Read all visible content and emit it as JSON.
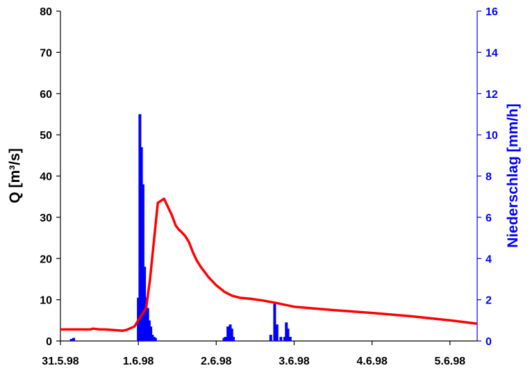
{
  "chart_data": {
    "type": "line+bar",
    "x_tick_labels": [
      "31.5.98",
      "1.6.98",
      "2.6.98",
      "3.6.98",
      "4.6.98",
      "5.6.98"
    ],
    "x_range_days": [
      0,
      5.35
    ],
    "y_left": {
      "label": "Q [m³/s]",
      "range": [
        0,
        80
      ],
      "ticks": [
        0,
        10,
        20,
        30,
        40,
        50,
        60,
        70,
        80
      ]
    },
    "y_right": {
      "label": "Niederschlag [mm/h]",
      "range": [
        0,
        16
      ],
      "ticks": [
        0,
        2,
        4,
        6,
        8,
        10,
        12,
        14,
        16
      ]
    },
    "series": [
      {
        "kind": "line",
        "axis": "left",
        "color": "#ff0000",
        "x": [
          0,
          0.2,
          0.38,
          0.42,
          0.5,
          0.57,
          0.65,
          0.8,
          0.85,
          0.95,
          1.0,
          1.05,
          1.1,
          1.15,
          1.25,
          1.33,
          1.38,
          1.43,
          1.48,
          1.52,
          1.55,
          1.6,
          1.65,
          1.7,
          1.75,
          1.8,
          1.9,
          2.0,
          2.1,
          2.2,
          2.3,
          2.45,
          2.6,
          2.75,
          3.0,
          3.5,
          4.0,
          4.5,
          5.0,
          5.35
        ],
        "y": [
          2.8,
          2.8,
          2.8,
          3.0,
          2.8,
          2.8,
          2.7,
          2.5,
          2.7,
          3.5,
          5.0,
          6.5,
          8.0,
          15.0,
          33.5,
          34.5,
          32.5,
          30.5,
          28.0,
          27.0,
          26.5,
          25.5,
          24.0,
          21.5,
          19.5,
          18.0,
          15.5,
          13.5,
          12.0,
          11.0,
          10.5,
          10.2,
          9.8,
          9.3,
          8.3,
          7.5,
          6.8,
          6.0,
          5.0,
          4.2
        ]
      },
      {
        "kind": "bar",
        "axis": "right",
        "color": "#0000ff",
        "x": [
          0.14,
          0.17,
          1.0,
          1.02,
          1.04,
          1.06,
          1.08,
          1.1,
          1.12,
          1.14,
          1.16,
          1.18,
          1.2,
          1.22,
          2.1,
          2.12,
          2.15,
          2.18,
          2.2,
          2.22,
          2.7,
          2.75,
          2.78,
          2.83,
          2.88,
          2.9,
          2.92,
          2.95
        ],
        "y": [
          0.1,
          0.15,
          2.1,
          11.0,
          9.4,
          7.6,
          3.6,
          2.1,
          1.6,
          1.0,
          0.7,
          0.3,
          0.2,
          0.15,
          0.15,
          0.2,
          0.7,
          0.8,
          0.6,
          0.2,
          0.3,
          1.8,
          0.8,
          0.2,
          0.2,
          0.9,
          0.6,
          0.2
        ]
      }
    ]
  }
}
